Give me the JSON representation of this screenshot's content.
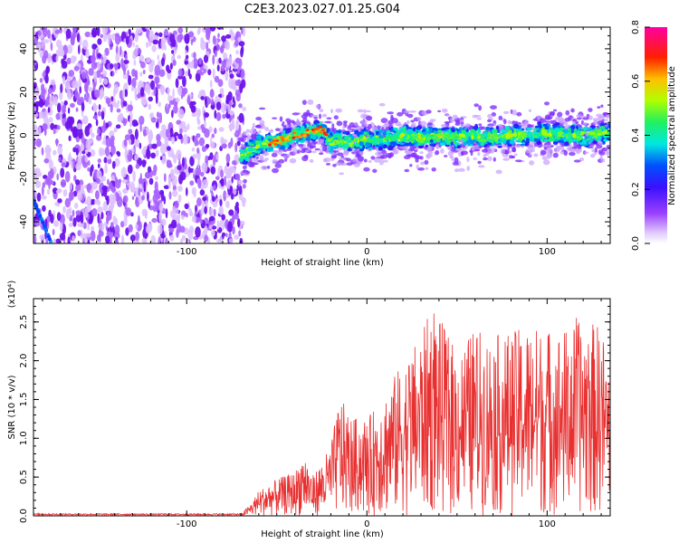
{
  "title": "C2E3.2023.027.01.25.G04",
  "colorbar": {
    "label": "Normalized spectral amplitude",
    "ticks": [
      "0.0",
      "0.2",
      "0.4",
      "0.6",
      "0.8"
    ],
    "tick_values": [
      0.0,
      0.2,
      0.4,
      0.6,
      0.8
    ],
    "range": [
      0,
      0.8
    ],
    "colormap": [
      "#ffffff",
      "#c080ff",
      "#7000ff",
      "#2030ff",
      "#00e0ff",
      "#30ff40",
      "#e0ff00",
      "#ff9000",
      "#ff0000",
      "#ff0090"
    ]
  },
  "chart_data": [
    {
      "type": "heatmap",
      "name": "spectrogram",
      "title": "C2E3.2023.027.01.25.G04",
      "xlabel": "Height of straight line (km)",
      "ylabel": "Frequency (Hz)",
      "xlim": [
        -185,
        135
      ],
      "ylim": [
        -50,
        50
      ],
      "xticks": [
        -100,
        0,
        100
      ],
      "xtick_labels": [
        "-100",
        "0",
        "100"
      ],
      "yticks": [
        -40,
        -20,
        0,
        20,
        40
      ],
      "ytick_labels": [
        "-40",
        "-20",
        "0",
        "20",
        "40"
      ],
      "noise_region_x": [
        -185,
        -68
      ],
      "ridge": {
        "x": [
          -70,
          -60,
          -50,
          -40,
          -30,
          -25,
          -20,
          -10,
          0,
          10,
          20,
          30,
          40,
          50,
          60,
          70,
          80,
          90,
          100,
          110,
          120,
          130
        ],
        "y": [
          -10,
          -4,
          -3,
          0,
          2,
          3,
          -3,
          -3,
          -2,
          -2,
          0,
          -1,
          0,
          -1,
          0,
          -1,
          0,
          0,
          1,
          0,
          0,
          1
        ]
      },
      "edge_feature": {
        "x": [
          -185,
          -175
        ],
        "y": [
          -30,
          -50
        ]
      }
    },
    {
      "type": "line",
      "name": "snr",
      "title": "",
      "xlabel": "Height of straight line (km)",
      "ylabel": "SNR (10 * v/v)",
      "y_multiplier": "(x10⁴)",
      "xlim": [
        -185,
        135
      ],
      "ylim": [
        0,
        2.8
      ],
      "xticks": [
        -100,
        0,
        100
      ],
      "xtick_labels": [
        "-100",
        "0",
        "100"
      ],
      "yticks": [
        0,
        0.5,
        1.0,
        1.5,
        2.0,
        2.5
      ],
      "ytick_labels": [
        "0.0",
        "0.5",
        "1.0",
        "1.5",
        "2.0",
        "2.5"
      ],
      "color": "#e83030",
      "envelope": {
        "x": [
          -185,
          -70,
          -65,
          -60,
          -50,
          -40,
          -35,
          -30,
          -20,
          -15,
          -10,
          0,
          10,
          20,
          30,
          35,
          40,
          50,
          60,
          70,
          80,
          90,
          100,
          110,
          120,
          130,
          135
        ],
        "y": [
          0.03,
          0.03,
          0.15,
          0.35,
          0.5,
          0.6,
          0.9,
          0.55,
          0.95,
          1.65,
          1.35,
          1.3,
          1.7,
          2.1,
          2.45,
          2.8,
          2.7,
          2.25,
          2.55,
          2.45,
          2.5,
          2.6,
          2.55,
          2.55,
          2.65,
          2.6,
          2.0
        ]
      }
    }
  ]
}
